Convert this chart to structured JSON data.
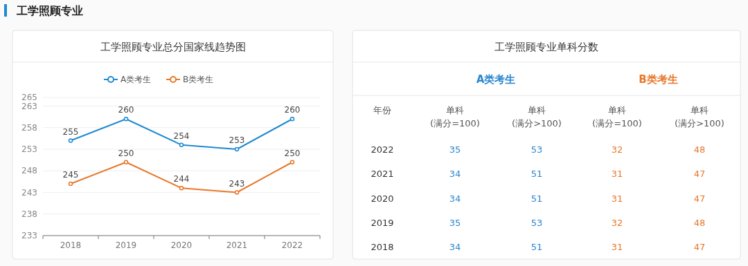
{
  "chart_data": [
    {
      "type": "line",
      "title": "工学照顾专业总分国家线趋势图",
      "annotations": [
        "工学照顾专业"
      ],
      "categories": [
        "2018",
        "2019",
        "2020",
        "2021",
        "2022"
      ],
      "series": [
        {
          "name": "A类考生",
          "color": "#1f8ad2",
          "values": [
            255,
            260,
            254,
            253,
            260
          ]
        },
        {
          "name": "B类考生",
          "color": "#e8772a",
          "values": [
            245,
            250,
            244,
            243,
            250
          ]
        }
      ],
      "ylim": [
        233,
        265
      ],
      "yticks": [
        233,
        238,
        243,
        248,
        253,
        258,
        263,
        265
      ],
      "grid": "y",
      "legend": "top",
      "marker": "circle",
      "data_labels": true
    },
    {
      "type": "heatmap",
      "title": "工学照顾专业单科分数",
      "ylabel": "年份",
      "annotations": [
        "A类考生",
        "B类考生"
      ],
      "categories": [
        "单科 (满分=100)",
        "单科 (满分>100)",
        "单科 (满分=100)",
        "单科 (满分>100)"
      ],
      "y_categories": [
        "2022",
        "2021",
        "2020",
        "2019",
        "2018"
      ],
      "colors": [
        "#2a86d0",
        "#2a86d0",
        "#e8772a",
        "#e8772a"
      ],
      "data_labels": true,
      "cells": [
        [
          35,
          53,
          32,
          48
        ],
        [
          34,
          51,
          31,
          47
        ],
        [
          34,
          51,
          31,
          47
        ],
        [
          35,
          53,
          32,
          48
        ],
        [
          34,
          51,
          31,
          47
        ]
      ]
    }
  ]
}
